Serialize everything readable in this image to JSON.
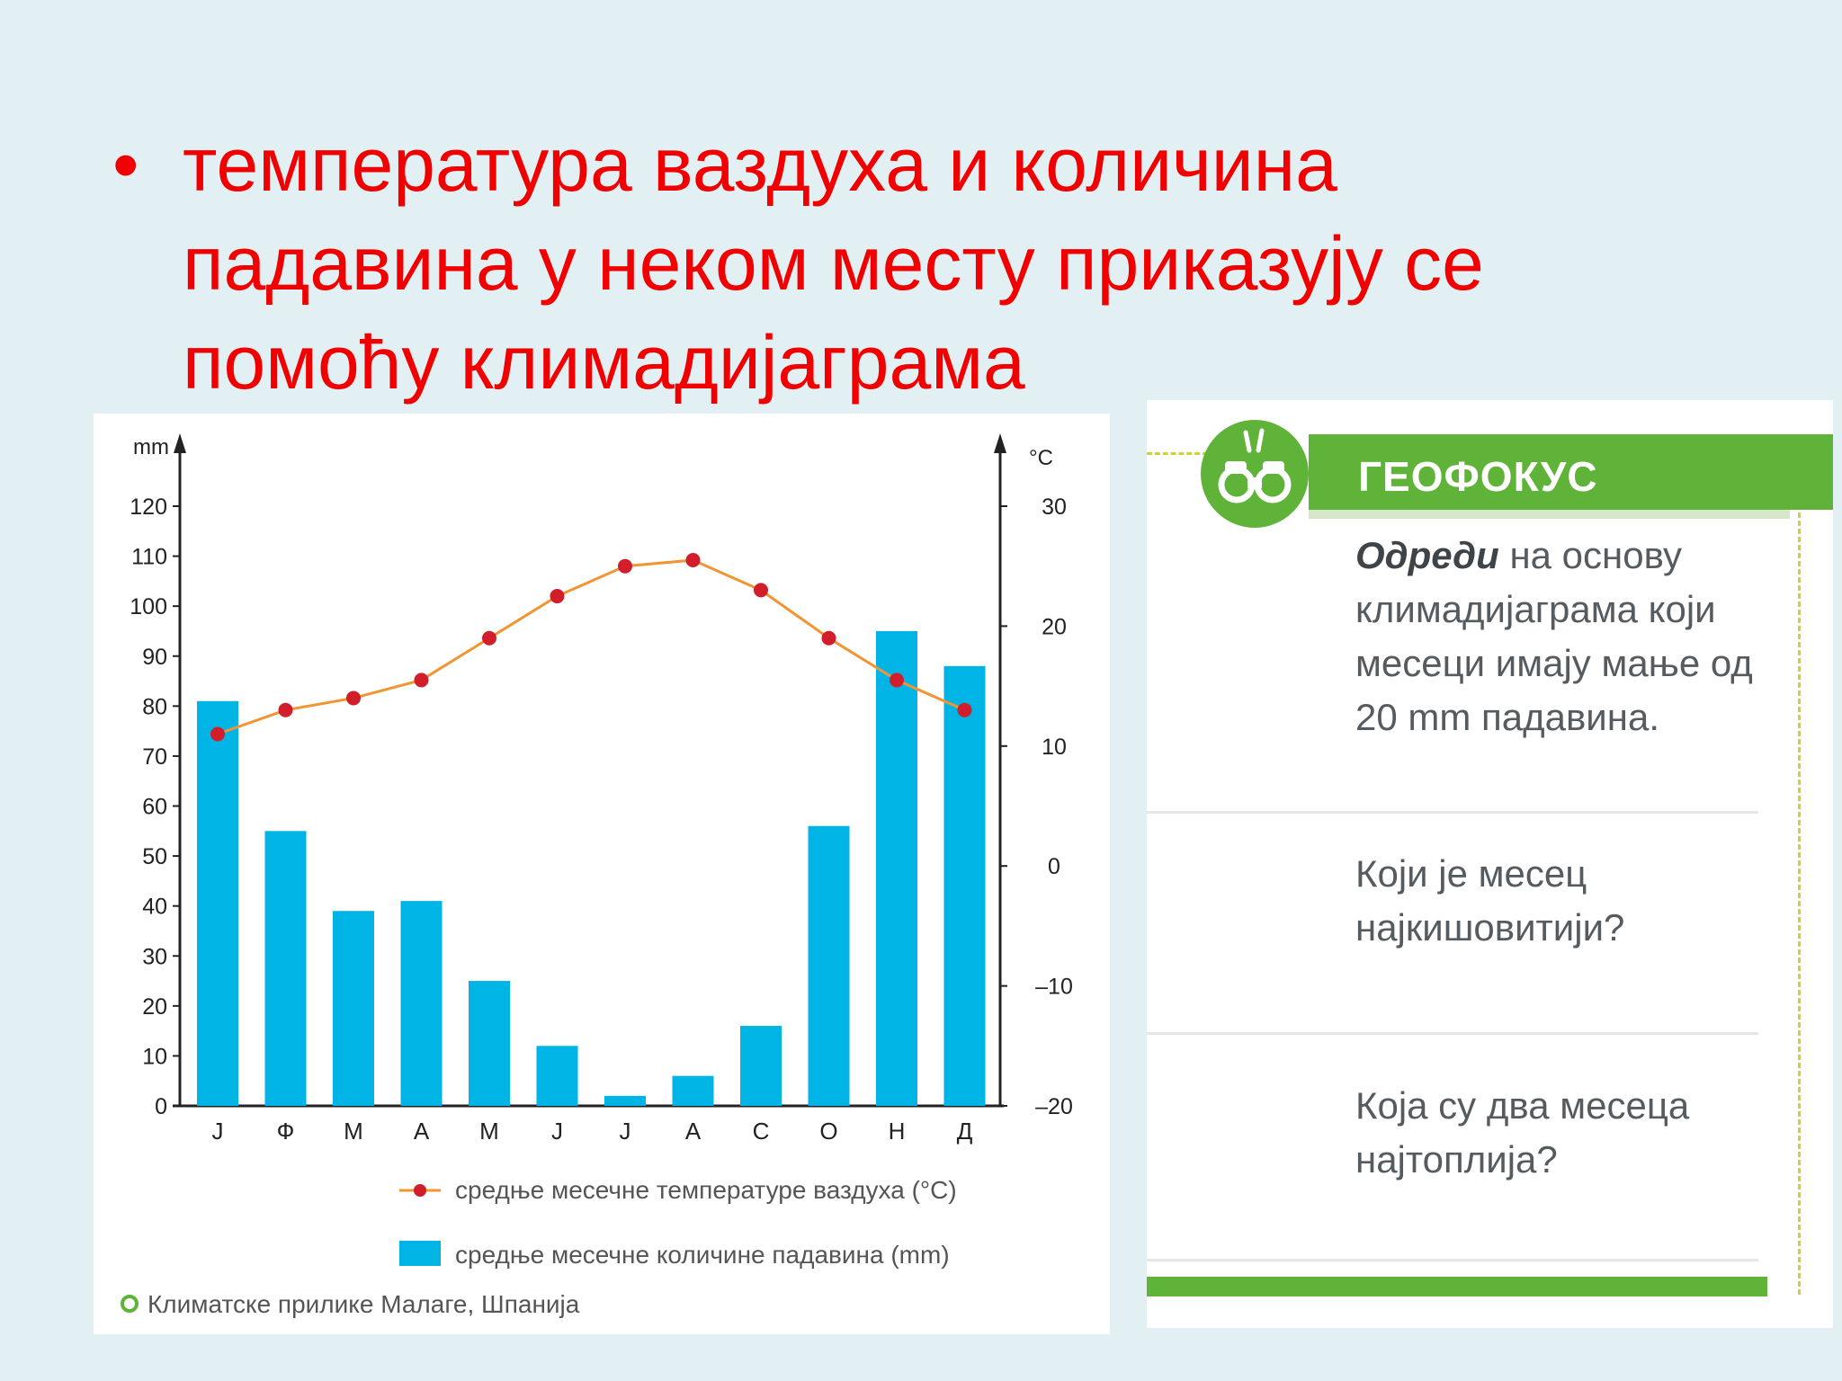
{
  "slide": {
    "bullet": "•",
    "lines": [
      "температура ваздуха и количина",
      "падавина у неком месту приказују се",
      "помоћу климадијаграма"
    ]
  },
  "chart_data": {
    "type": "bar+line",
    "categories": [
      "J",
      "Ф",
      "М",
      "А",
      "М",
      "J",
      "J",
      "А",
      "С",
      "О",
      "Н",
      "Д"
    ],
    "series": [
      {
        "name": "средње месечне количине падавина (mm)",
        "kind": "bar",
        "axis": "left",
        "values": [
          81,
          55,
          39,
          41,
          25,
          12,
          2,
          6,
          16,
          56,
          95,
          88
        ]
      },
      {
        "name": "средње месечне температуре ваздуха (°C)",
        "kind": "line",
        "axis": "right",
        "values": [
          11,
          13,
          14,
          15.5,
          19,
          22.5,
          25,
          25.5,
          23,
          19,
          15.5,
          13
        ]
      }
    ],
    "left_axis": {
      "label": "mm",
      "range": [
        0,
        120
      ],
      "ticks": [
        "0",
        "10",
        "20",
        "30",
        "40",
        "50",
        "60",
        "70",
        "80",
        "90",
        "100",
        "110",
        "120"
      ]
    },
    "right_axis": {
      "label": "°C",
      "range": [
        -20,
        30
      ],
      "ticks": [
        "–20",
        "–10",
        "0",
        "10",
        "20",
        "30"
      ]
    },
    "legend": {
      "placement": "bottom-right"
    },
    "caption": "Климатске прилике Малаге, Шпанија",
    "colors": {
      "bar": "#00b4e6",
      "line": "#f29431",
      "marker": "#d21e2b",
      "caption_marker": "#5fb338"
    }
  },
  "geofokus": {
    "title": "ГЕОФОКУС",
    "icon": "binoculars-icon",
    "q1_em": "Одреди",
    "q1_rest": " на основу",
    "q1_lines": [
      "климадијаграма који",
      "месеци имају мање од",
      "20 mm падавина."
    ],
    "q2_lines": [
      "Који је месец",
      "најкишовитији?"
    ],
    "q3_lines": [
      "Која су два месеца",
      "најтоплија?"
    ],
    "colors": {
      "accent": "#5fb338",
      "dash": "#c8d53a"
    }
  }
}
